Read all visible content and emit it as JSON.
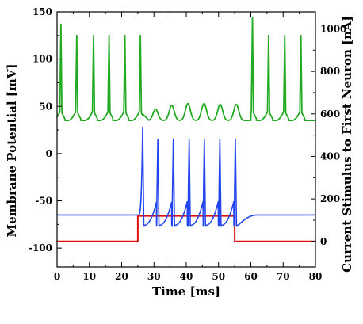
{
  "chart_data": {
    "type": "line",
    "xlabel": "Time [ms]",
    "ylabel_left": "Membrane Potential [mV]",
    "ylabel_right": "Current Stimulus to First Neuron [nA]",
    "xlim": [
      0,
      80
    ],
    "ylim_left": [
      -120,
      150
    ],
    "ylim_right": [
      -120,
      1080
    ],
    "x_ticks": [
      "0",
      "10",
      "20",
      "30",
      "40",
      "50",
      "60",
      "70",
      "80"
    ],
    "y_ticks_left": [
      "-100",
      "-50",
      "0",
      "50",
      "100",
      "150"
    ],
    "y_ticks_right": [
      "0",
      "200",
      "400",
      "600",
      "800",
      "1000"
    ],
    "grid": false,
    "legend": "none",
    "series": [
      {
        "color": "#22aa22",
        "axis": "left",
        "pattern": "periodic spikes",
        "spike_times": [
          1.2,
          6.1,
          11.3,
          16.1,
          21.0,
          25.8,
          60.5,
          65.5,
          70.5,
          75.5
        ],
        "spike_peaks": [
          137,
          125,
          125,
          125,
          125,
          125,
          144,
          125,
          125,
          125
        ],
        "baseline": 37,
        "trough": 35,
        "suppressed_window": [
          26.5,
          60.0
        ],
        "suppressed_peak_times": [
          30.5,
          35.5,
          40.5,
          45.5,
          50.5,
          55.5
        ],
        "suppressed_peak_values": [
          47,
          51,
          53,
          53,
          52,
          52
        ],
        "suppressed_trough": 35
      },
      {
        "color": "#2244ee",
        "axis": "left",
        "pattern": "spiking during stimulus",
        "resting": -65,
        "spike_times": [
          26.5,
          31.2,
          36.0,
          40.9,
          45.6,
          50.4,
          55.2
        ],
        "spike_peaks": [
          28,
          15,
          15,
          15,
          15,
          15,
          15
        ],
        "interspike_min": -76,
        "after_stimulus_min": -75,
        "recovery_end": 62
      },
      {
        "color": "#dd1111",
        "axis": "right",
        "pattern": "step",
        "points": [
          [
            0,
            0
          ],
          [
            25,
            0
          ],
          [
            25,
            120
          ],
          [
            55,
            120
          ],
          [
            55,
            0
          ],
          [
            80,
            0
          ]
        ]
      }
    ]
  }
}
